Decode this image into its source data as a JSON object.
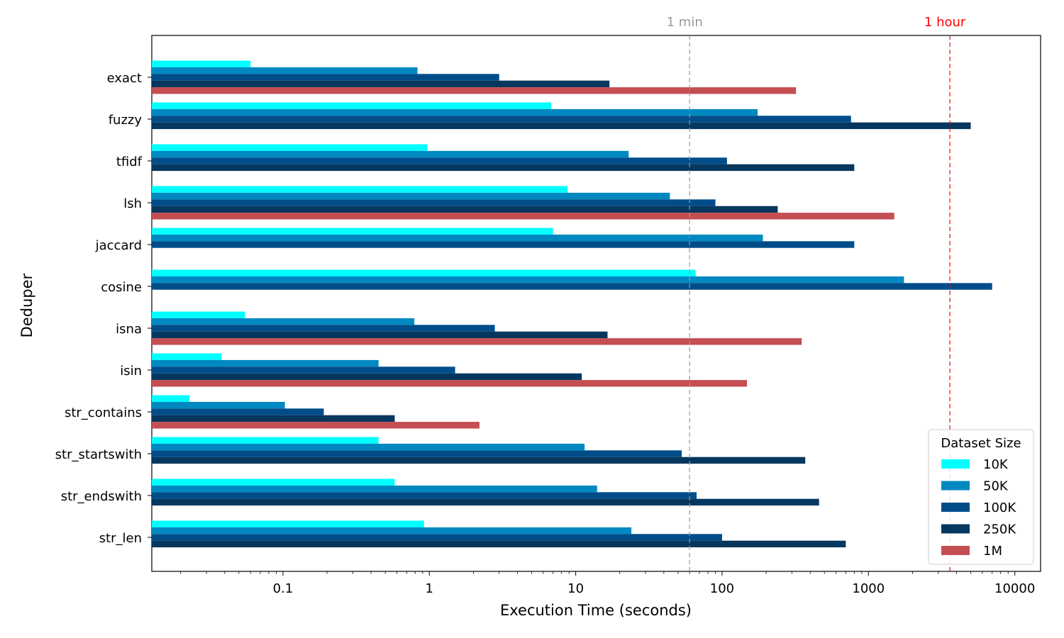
{
  "chart_data": {
    "type": "bar",
    "orientation": "horizontal",
    "x_scale": "log",
    "xlabel": "Execution Time (seconds)",
    "ylabel": "Deduper",
    "xlim": [
      0.0127,
      15000
    ],
    "x_ticks": [
      {
        "value": 0.1,
        "label": "0.1"
      },
      {
        "value": 1,
        "label": "1"
      },
      {
        "value": 10,
        "label": "10"
      },
      {
        "value": 100,
        "label": "100"
      },
      {
        "value": 1000,
        "label": "1000"
      },
      {
        "value": 10000,
        "label": "10000"
      }
    ],
    "categories": [
      "exact",
      "fuzzy",
      "tfidf",
      "lsh",
      "jaccard",
      "cosine",
      "isna",
      "isin",
      "str_contains",
      "str_startswith",
      "str_endswith",
      "str_len"
    ],
    "series": [
      {
        "name": "10K",
        "color": "#00FFFF",
        "values": [
          0.06,
          6.8,
          0.97,
          8.8,
          7.0,
          66,
          0.055,
          0.038,
          0.023,
          0.45,
          0.58,
          0.92
        ]
      },
      {
        "name": "50K",
        "color": "#0089C0",
        "values": [
          0.83,
          175,
          23,
          44,
          190,
          1750,
          0.79,
          0.45,
          0.103,
          11.5,
          14,
          24
        ]
      },
      {
        "name": "100K",
        "color": "#004D8A",
        "values": [
          3.0,
          760,
          108,
          90,
          800,
          7000,
          2.8,
          1.5,
          0.19,
          53,
          67,
          100
        ]
      },
      {
        "name": "250K",
        "color": "#06375E",
        "values": [
          17,
          5000,
          800,
          240,
          null,
          null,
          16.5,
          11,
          0.58,
          370,
          460,
          700
        ]
      },
      {
        "name": "1M",
        "color": "#C44E52",
        "values": [
          320,
          null,
          null,
          1500,
          null,
          null,
          350,
          148,
          2.2,
          null,
          null,
          null
        ]
      }
    ],
    "reference_lines": [
      {
        "value": 60,
        "label": "1 min",
        "color": "#999999"
      },
      {
        "value": 3600,
        "label": "1 hour",
        "color": "#FF0000"
      }
    ],
    "legend": {
      "title": "Dataset Size",
      "position": "lower-right"
    },
    "grid": false
  }
}
